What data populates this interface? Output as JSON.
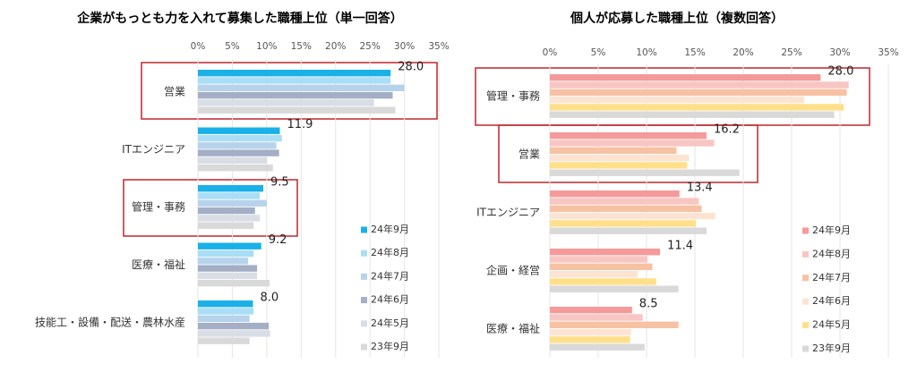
{
  "chart_data": [
    {
      "type": "hbar",
      "title": "企業がもっとも力を入れて募集した職種上位（単一回答）",
      "categories": [
        "営業",
        "ITエンジニア",
        "管理・事務",
        "医療・福祉",
        "技能工・設備・配送・農林水産"
      ],
      "series": [
        {
          "name": "24年9月",
          "color": "#1ab0e8",
          "values": [
            28.0,
            11.9,
            9.5,
            9.2,
            8.0
          ],
          "value_labels": [
            "28.0",
            "11.9",
            "9.5",
            "9.2",
            "8.0"
          ]
        },
        {
          "name": "24年8月",
          "color": "#a9def6",
          "values": [
            28.0,
            12.2,
            9.0,
            8.1,
            8.1
          ]
        },
        {
          "name": "24年7月",
          "color": "#b7d3ec",
          "values": [
            30.0,
            11.4,
            10.0,
            7.3,
            7.5
          ]
        },
        {
          "name": "24年6月",
          "color": "#a4afc6",
          "values": [
            28.3,
            11.8,
            8.3,
            8.6,
            10.3
          ]
        },
        {
          "name": "24年5月",
          "color": "#d8dde6",
          "values": [
            25.6,
            10.0,
            9.0,
            8.6,
            10.5
          ]
        },
        {
          "name": "23年9月",
          "color": "#d9d9d9",
          "values": [
            28.7,
            10.9,
            8.1,
            10.4,
            7.5
          ]
        }
      ],
      "xlim": [
        0,
        35
      ],
      "xticks": [
        {
          "value": 0,
          "label": "0%"
        },
        {
          "value": 5,
          "label": "5%"
        },
        {
          "value": 10,
          "label": "10%"
        },
        {
          "value": 15,
          "label": "15%"
        },
        {
          "value": 20,
          "label": "20%"
        },
        {
          "value": 25,
          "label": "25%"
        },
        {
          "value": 30,
          "label": "30%"
        },
        {
          "value": 35,
          "label": "35%"
        }
      ],
      "grid": true
    },
    {
      "type": "hbar",
      "title": "個人が応募した職種上位（複数回答）",
      "categories": [
        "管理・事務",
        "営業",
        "ITエンジニア",
        "企画・経営",
        "医療・福祉"
      ],
      "series": [
        {
          "name": "24年9月",
          "color": "#f59a9a",
          "values": [
            28.0,
            16.2,
            13.4,
            11.4,
            8.5
          ],
          "value_labels": [
            "28.0",
            "16.2",
            "13.4",
            "11.4",
            "8.5"
          ]
        },
        {
          "name": "24年8月",
          "color": "#f8c6c2",
          "values": [
            30.9,
            17.0,
            15.4,
            10.1,
            9.6
          ]
        },
        {
          "name": "24年7月",
          "color": "#f6c2a3",
          "values": [
            30.7,
            13.1,
            15.7,
            10.6,
            13.3
          ]
        },
        {
          "name": "24年6月",
          "color": "#fde4d2",
          "values": [
            26.3,
            14.4,
            17.1,
            9.1,
            8.4
          ]
        },
        {
          "name": "24年5月",
          "color": "#ffe08a",
          "values": [
            30.4,
            14.2,
            15.1,
            11.0,
            8.3
          ]
        },
        {
          "name": "23年9月",
          "color": "#d9d9d9",
          "values": [
            29.4,
            19.6,
            16.2,
            13.3,
            9.8
          ]
        }
      ],
      "xlim": [
        0,
        35
      ],
      "xticks": [
        {
          "value": 0,
          "label": "0%"
        },
        {
          "value": 5,
          "label": "5%"
        },
        {
          "value": 10,
          "label": "10%"
        },
        {
          "value": 15,
          "label": "15%"
        },
        {
          "value": 20,
          "label": "20%"
        },
        {
          "value": 25,
          "label": "25%"
        },
        {
          "value": 30,
          "label": "30%"
        },
        {
          "value": 35,
          "label": "35%"
        }
      ],
      "grid": true
    }
  ]
}
